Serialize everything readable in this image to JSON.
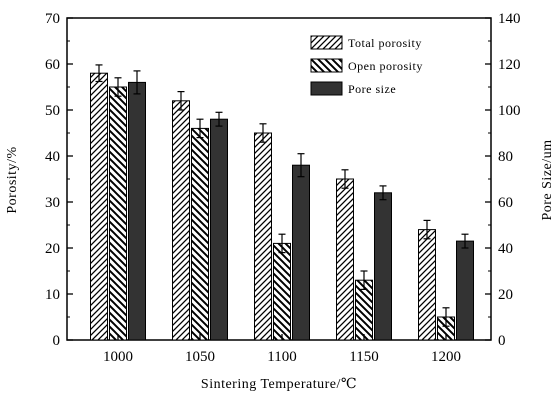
{
  "chart_data": {
    "type": "bar",
    "xlabel": "Sintering Temperature/℃",
    "ylabel_left": "Porosity/%",
    "ylabel_right": "Pore Size/um",
    "categories": [
      "1000",
      "1050",
      "1100",
      "1150",
      "1200"
    ],
    "ylim_left": [
      0,
      70
    ],
    "yticks_left": [
      "0",
      "10",
      "20",
      "30",
      "40",
      "50",
      "60",
      "70"
    ],
    "ylim_right": [
      0,
      140
    ],
    "yticks_right": [
      "0",
      "20",
      "40",
      "60",
      "80",
      "100",
      "120",
      "140"
    ],
    "grid": false,
    "legend_position": "top-right",
    "series": [
      {
        "name": "Total porosity",
        "axis": "left",
        "pattern": "hatch-forward",
        "values": [
          58,
          52,
          45,
          35,
          24
        ],
        "errors": [
          1.8,
          2.0,
          2.0,
          2.0,
          2.0
        ]
      },
      {
        "name": "Open porosity",
        "axis": "left",
        "pattern": "hatch-backward",
        "values": [
          55,
          46,
          21,
          13,
          5
        ],
        "errors": [
          2.0,
          2.0,
          2.0,
          2.0,
          2.0
        ]
      },
      {
        "name": "Pore size",
        "axis": "right",
        "pattern": "solid-dark",
        "values": [
          112,
          96,
          76,
          64,
          43
        ],
        "errors": [
          5,
          3,
          5,
          3,
          3
        ]
      }
    ]
  }
}
